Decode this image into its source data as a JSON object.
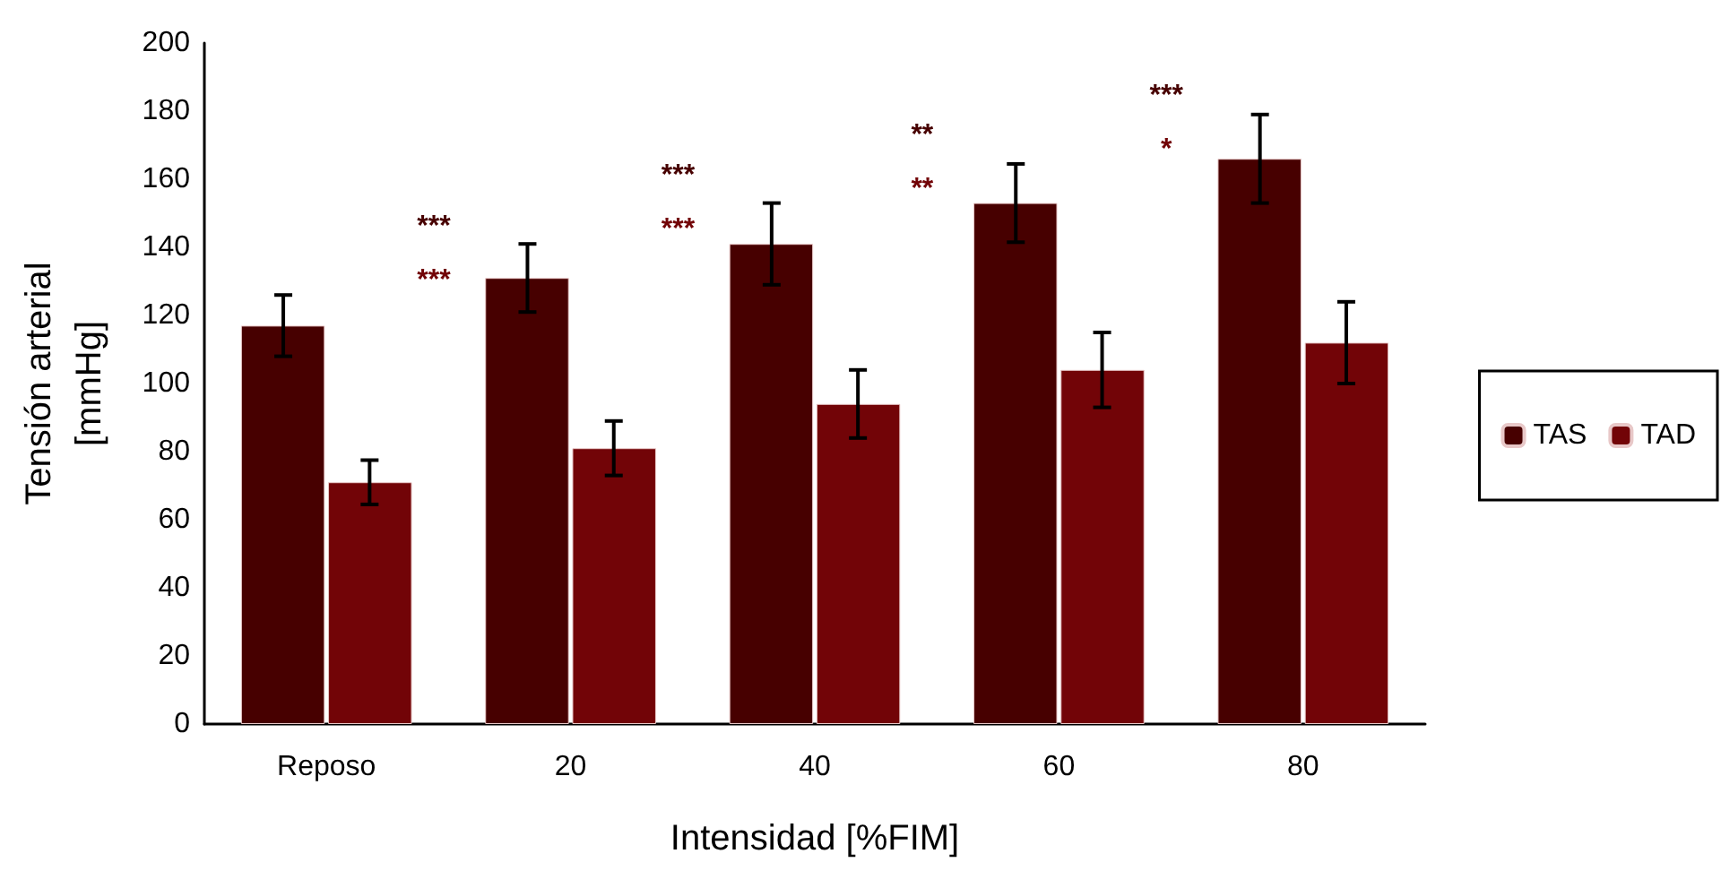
{
  "chart_data": {
    "type": "bar",
    "xlabel": "Intensidad [%FIM]",
    "ylabel": "Tensión arterial\n[mmHg]",
    "categories": [
      "Reposo",
      "20",
      "40",
      "60",
      "80"
    ],
    "series": [
      {
        "name": "TAS",
        "color": "#470000",
        "values": [
          117,
          131,
          141,
          153,
          166
        ],
        "errors": [
          9,
          10,
          12,
          11.5,
          13
        ]
      },
      {
        "name": "TAD",
        "color": "#720407",
        "values": [
          71,
          81,
          94,
          104,
          112
        ],
        "errors": [
          6.5,
          8,
          10,
          11,
          12
        ]
      }
    ],
    "ylim": [
      0,
      200
    ],
    "yticks": [
      0,
      20,
      40,
      60,
      80,
      100,
      120,
      140,
      160,
      180,
      200
    ],
    "grid": false,
    "legend": "right",
    "annotations": [
      "***",
      "***",
      "***",
      "***",
      "**",
      "**",
      "***",
      "*"
    ]
  }
}
